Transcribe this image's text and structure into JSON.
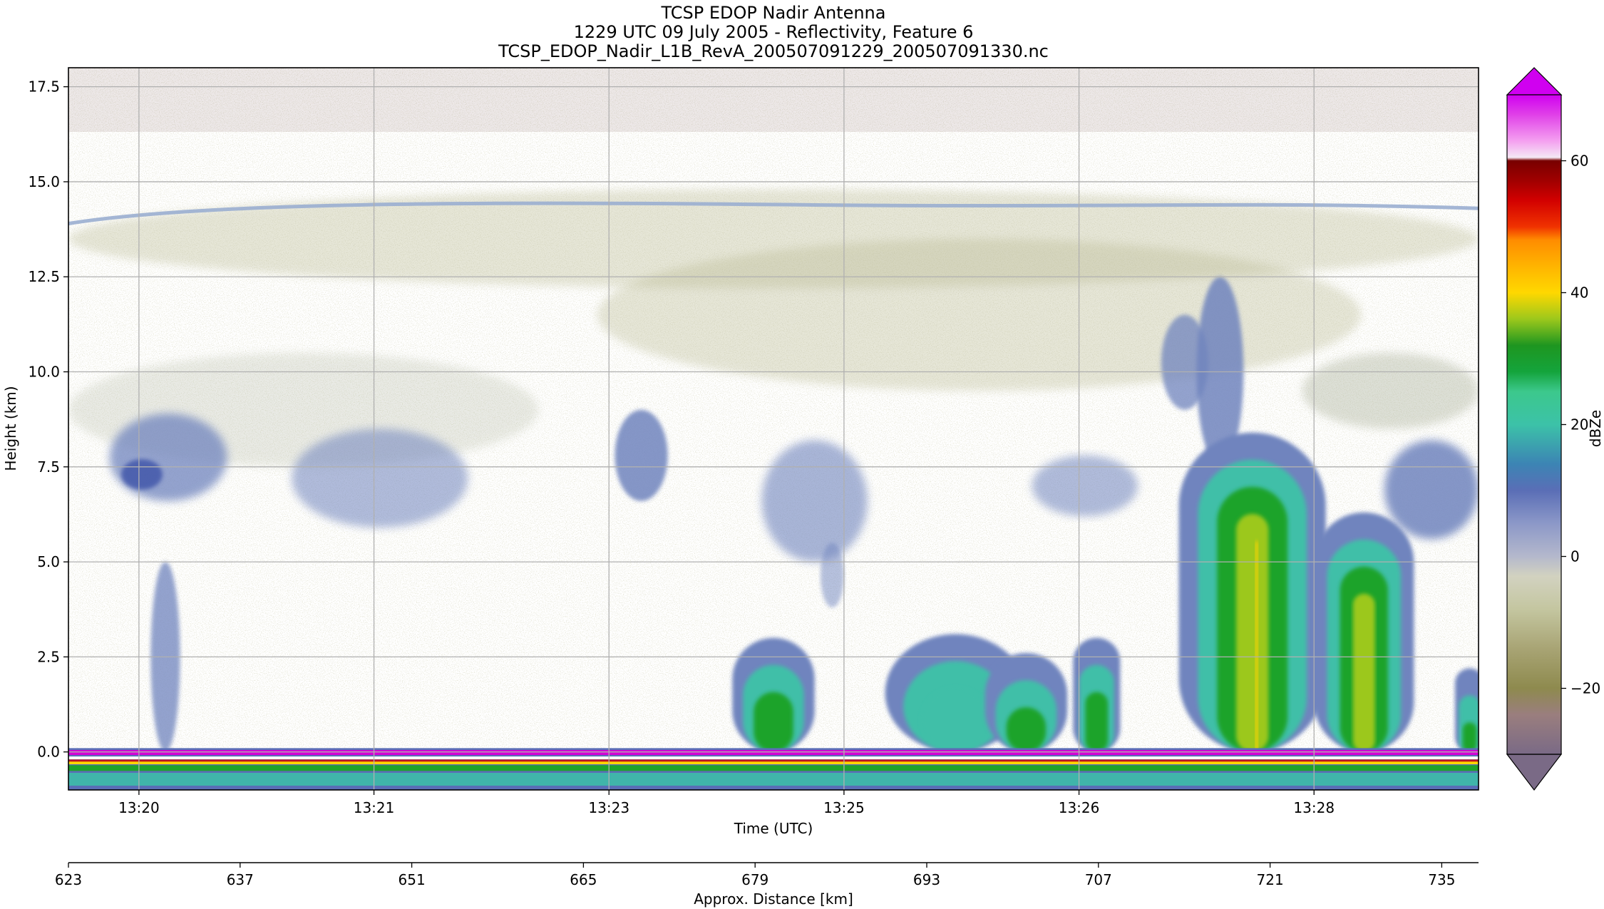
{
  "chart_data": {
    "type": "heatmap",
    "title_lines": [
      "TCSP EDOP Nadir Antenna",
      "1229 UTC 09 July 2005 - Reflectivity, Feature 6",
      "TCSP_EDOP_Nadir_L1B_RevA_200507091229_200507091330.nc"
    ],
    "xlabel": "Time (UTC)",
    "ylabel": "Height (km)",
    "x2label": "Approx. Distance [km]",
    "colorbar_label": "dBZe",
    "x_tick_labels": [
      "13:20",
      "13:21",
      "13:23",
      "13:25",
      "13:26",
      "13:28"
    ],
    "x_tick_values_min": [
      0.6,
      2.6,
      4.6,
      6.6,
      8.6,
      10.6
    ],
    "x_range_min": [
      0,
      12
    ],
    "y_ticks": [
      0.0,
      2.5,
      5.0,
      7.5,
      10.0,
      12.5,
      15.0,
      17.5
    ],
    "y_tick_labels": [
      "0.0",
      "2.5",
      "5.0",
      "7.5",
      "10.0",
      "12.5",
      "15.0",
      "17.5"
    ],
    "ylim": [
      -1.0,
      18.0
    ],
    "distance_ticks": [
      623,
      637,
      651,
      665,
      679,
      693,
      707,
      721,
      735
    ],
    "distance_range": [
      623,
      738
    ],
    "colorbar_ticks": [
      -20,
      0,
      20,
      40,
      60
    ],
    "colorbar_tick_labels": [
      "−20",
      "0",
      "20",
      "40",
      "60"
    ],
    "colorbar_range": [
      -30,
      70
    ],
    "colorbar_extend": "both",
    "grid": true,
    "features": [
      {
        "name": "tropopause-layer",
        "t": [
          0,
          12
        ],
        "height_km": 14.4,
        "dbz": -10
      },
      {
        "name": "cirrus-band",
        "t": [
          0,
          12
        ],
        "height_km": [
          12,
          14.8
        ],
        "dbz": -15
      },
      {
        "name": "mid-cloud-1",
        "t": [
          0.4,
          1.4
        ],
        "height_km": [
          6.5,
          9
        ],
        "dbz": 10
      },
      {
        "name": "mid-cloud-2",
        "t": [
          2,
          3.4
        ],
        "height_km": [
          6,
          8.5
        ],
        "dbz": 5
      },
      {
        "name": "cell-24",
        "t": [
          5.6,
          6.4
        ],
        "height_km": [
          -1,
          3
        ],
        "dbz": 30
      },
      {
        "name": "cell-25",
        "t": [
          7,
          8.1
        ],
        "height_km": [
          -1,
          3
        ],
        "dbz": 20
      },
      {
        "name": "cell-26",
        "t": [
          8.5,
          8.9
        ],
        "height_km": [
          -1,
          3
        ],
        "dbz": 25
      },
      {
        "name": "cell-27",
        "t": [
          9.5,
          10.8
        ],
        "height_km": [
          -1,
          8.3
        ],
        "dbz": 42
      },
      {
        "name": "cell-28",
        "t": [
          10.6,
          11.5
        ],
        "height_km": [
          -1,
          6.3
        ],
        "dbz": 38
      },
      {
        "name": "surface-echo",
        "t": [
          0,
          12
        ],
        "height_km": 0,
        "dbz": 65
      }
    ],
    "colors": {
      "clear": "#ffffff",
      "noise_low": "#9a8c6a",
      "noise_mid": "#b8b890",
      "ice": "#aab09a",
      "weak": "#6f84be",
      "moderate": "#3fbfa8",
      "strong": "#1ea32a",
      "heavy": "#ffd400",
      "surface": "#d400d4"
    }
  }
}
